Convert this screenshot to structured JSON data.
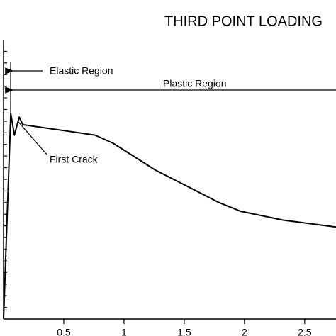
{
  "chart_data": {
    "type": "line",
    "title": "THIRD POINT LOADING",
    "x": [
      0,
      0.06,
      0.09,
      0.13,
      0.16,
      0.56,
      0.76,
      0.91,
      1.26,
      1.79,
      1.97,
      2.32,
      2.76
    ],
    "series": [
      {
        "color": "#000000",
        "values": [
          0,
          17.65,
          15.8,
          17.35,
          16.7,
          16.1,
          15.8,
          15.1,
          12.8,
          10.0,
          9.25,
          8.5,
          7.9
        ]
      }
    ],
    "xlim": [
      0,
      2.76
    ],
    "xticks": [
      0.5,
      1.0,
      1.5,
      2.0,
      2.5
    ],
    "ylim": [
      0,
      24
    ],
    "yticks": [
      1,
      2,
      3,
      4,
      5,
      6,
      7,
      8,
      9,
      10,
      11,
      12,
      13,
      14,
      15,
      16,
      17,
      18,
      19,
      20,
      21,
      22,
      23
    ],
    "annotations": [
      "Elastic Region",
      "Plastic Region",
      "First Crack"
    ]
  }
}
